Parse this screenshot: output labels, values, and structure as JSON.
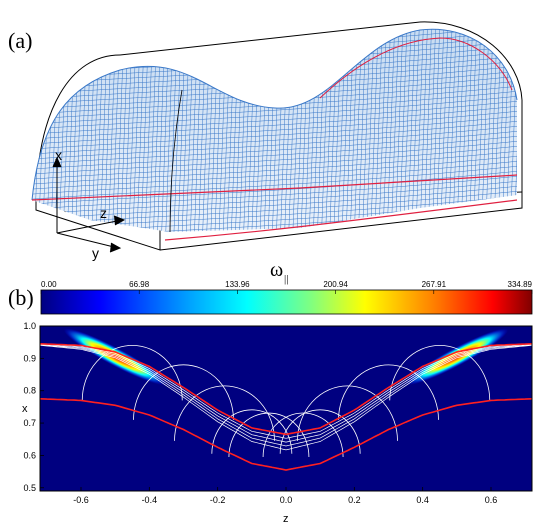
{
  "panel_a": {
    "label": "(a)",
    "axis_labels": {
      "x": "x",
      "y": "y",
      "z": "z"
    }
  },
  "panel_b": {
    "label": "(b)",
    "colorbar": {
      "symbol": "ω",
      "subscript": "||",
      "ticks": [
        "0.00",
        "66.98",
        "133.96",
        "200.94",
        "267.91",
        "334.89"
      ],
      "range": [
        0.0,
        334.89
      ]
    }
  },
  "chart_data": {
    "type": "heatmap",
    "xlabel": "z",
    "ylabel": "x",
    "xlim": [
      -0.72,
      0.72
    ],
    "ylim": [
      0.49,
      1.0
    ],
    "xticks": [
      "-0.6",
      "-0.4",
      "-0.2",
      "0.0",
      "0.2",
      "0.4",
      "0.6"
    ],
    "xtick_values": [
      -0.6,
      -0.4,
      -0.2,
      0.0,
      0.2,
      0.4,
      0.6
    ],
    "yticks": [
      "1.0",
      "0.9",
      "0.8",
      "0.7",
      "0.6",
      "0.5"
    ],
    "ytick_values": [
      1.0,
      0.9,
      0.8,
      0.7,
      0.6,
      0.5
    ],
    "upper_boundary": {
      "z": [
        -0.72,
        -0.6,
        -0.5,
        -0.4,
        -0.3,
        -0.2,
        -0.1,
        0.0,
        0.1,
        0.2,
        0.3,
        0.4,
        0.5,
        0.6,
        0.72
      ],
      "x": [
        0.945,
        0.94,
        0.92,
        0.875,
        0.81,
        0.74,
        0.685,
        0.665,
        0.685,
        0.74,
        0.81,
        0.875,
        0.92,
        0.94,
        0.945
      ]
    },
    "lower_boundary": {
      "z": [
        -0.72,
        -0.6,
        -0.5,
        -0.4,
        -0.3,
        -0.2,
        -0.1,
        0.0,
        0.1,
        0.2,
        0.3,
        0.4,
        0.5,
        0.6,
        0.72
      ],
      "x": [
        0.775,
        0.77,
        0.755,
        0.725,
        0.68,
        0.625,
        0.575,
        0.555,
        0.575,
        0.625,
        0.68,
        0.725,
        0.755,
        0.77,
        0.775
      ]
    },
    "field_line_offsets": [
      0.0,
      0.012,
      0.024,
      0.036,
      0.048
    ],
    "hot_spots": [
      {
        "z": -0.5,
        "x": 0.905,
        "value": 334.89
      },
      {
        "z": 0.5,
        "x": 0.905,
        "value": 334.89
      }
    ]
  },
  "colors": {
    "background": "#000080",
    "boundary": "#ff2020",
    "field_lines": "#ffffff",
    "mesh": "#3a78c8",
    "outline": "#000000"
  }
}
